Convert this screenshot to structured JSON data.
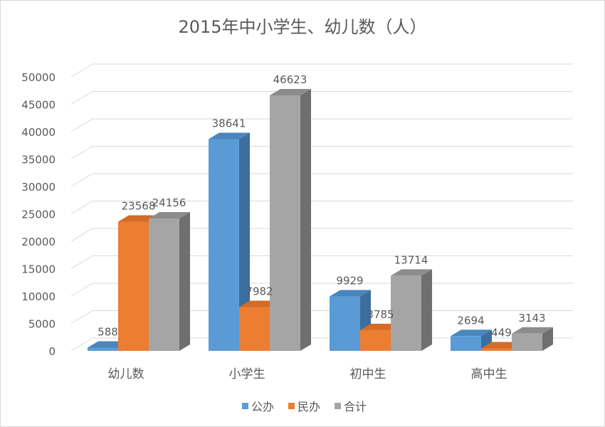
{
  "chart_data": {
    "type": "bar",
    "title": "2015年中小学生、幼儿数（人）",
    "categories": [
      "幼儿数",
      "小学生",
      "初中生",
      "高中生"
    ],
    "series": [
      {
        "name": "公办",
        "values": [
          588,
          38641,
          9929,
          2694
        ]
      },
      {
        "name": "民办",
        "values": [
          23568,
          7982,
          3785,
          449
        ]
      },
      {
        "name": "合计",
        "values": [
          24156,
          46623,
          13714,
          3143
        ]
      }
    ],
    "ylim": [
      0,
      50000
    ],
    "yticks": [
      0,
      5000,
      10000,
      15000,
      20000,
      25000,
      30000,
      35000,
      40000,
      45000,
      50000
    ],
    "grid": true,
    "three_d": true,
    "data_labels": true,
    "legend_position": "bottom",
    "colors": {
      "公办": {
        "front": "#5b9bd5",
        "side": "#3c6e9e",
        "top": "#4a86bd"
      },
      "民办": {
        "front": "#ed7d31",
        "side": "#b45a1f",
        "top": "#d46b26"
      },
      "合计": {
        "front": "#a5a5a5",
        "side": "#6f6f6f",
        "top": "#8c8c8c"
      }
    },
    "gridline_color": "#d9d9d9",
    "text_color": "#595959"
  }
}
